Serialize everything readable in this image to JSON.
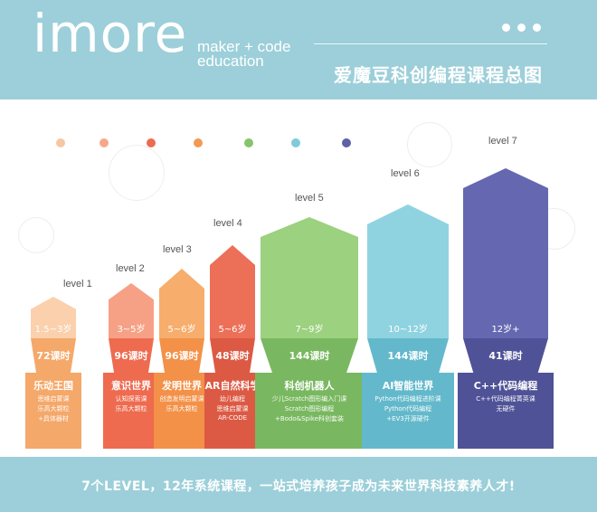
{
  "header": {
    "logo": "imore",
    "tagline_line1": "maker + code",
    "tagline_line2": "education",
    "title": "爱魔豆科创编程课程总图"
  },
  "palette": [
    "#f6c7a0",
    "#f5a98a",
    "#ee6b4f",
    "#f49952",
    "#85c46b",
    "#7fcbd9",
    "#5e61a8"
  ],
  "levels": [
    {
      "level": "level 1",
      "age": "1.5~3岁",
      "hours": "72课时",
      "title": "乐动王国",
      "lines": [
        "思维启蒙课",
        "乐高大颗粒",
        "+具体器材"
      ],
      "color": "#fbd0ad",
      "color_dark": "#f4a86a"
    },
    {
      "level": "level 2",
      "age": "3~5岁",
      "hours": "96课时",
      "title": "意识世界",
      "lines": [
        "认知探索课",
        "乐高大颗粒"
      ],
      "color": "#f6a186",
      "color_dark": "#ee6b4f"
    },
    {
      "level": "level 3",
      "age": "5~6岁",
      "hours": "96课时",
      "title": "发明世界",
      "lines": [
        "创造发明启蒙课",
        "乐高大颗粒"
      ],
      "color": "#f7ad6c",
      "color_dark": "#f39148"
    },
    {
      "level": "level 4",
      "age": "5~6岁",
      "hours": "48课时",
      "title": "AR自然科学",
      "lines": [
        "幼儿编程",
        "思维启蒙课",
        "AR-CODE"
      ],
      "color": "#ec6f58",
      "color_dark": "#dc5a44"
    },
    {
      "level": "level 5",
      "age": "7~9岁",
      "hours": "144课时",
      "title": "科创机器人",
      "lines": [
        "少儿Scratch图形编入门课",
        "Scratch图形编程",
        "+Bodo&Spike科创套装"
      ],
      "color": "#9bd17f",
      "color_dark": "#79b860"
    },
    {
      "level": "level 6",
      "age": "10~12岁",
      "hours": "144课时",
      "title": "AI智能世界",
      "lines": [
        "Python代码编程进阶课",
        "Python代码编程",
        "+EV3开源硬件"
      ],
      "color": "#8fd3e0",
      "color_dark": "#63b9cb"
    },
    {
      "level": "level 7",
      "age": "12岁+",
      "hours": "41课时",
      "title": "C++代码编程",
      "lines": [
        "C++代码编程菁英课",
        "无硬件"
      ],
      "color": "#6568b0",
      "color_dark": "#4f5297"
    }
  ],
  "footer": {
    "text": "7个LEVEL，12年系统课程，一站式培养孩子成为未来世界科技素养人才!"
  }
}
